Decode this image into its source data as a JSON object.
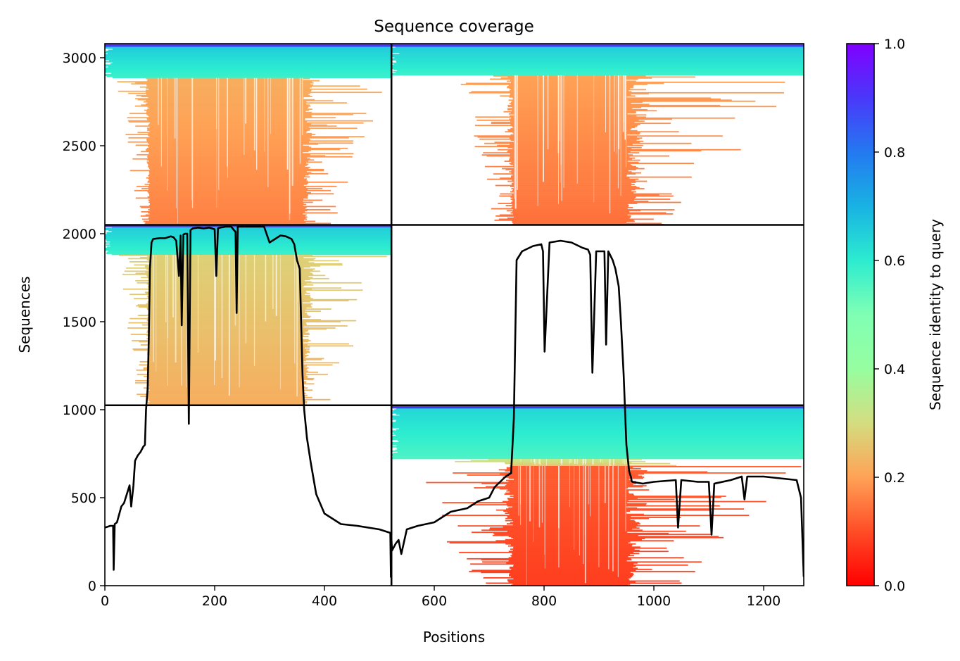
{
  "chart_data": {
    "type": "heatmap",
    "title": "Sequence coverage",
    "xlabel": "Positions",
    "ylabel": "Sequences",
    "xlim": [
      0,
      1273
    ],
    "ylim": [
      0,
      3080
    ],
    "xticks": [
      0,
      200,
      400,
      600,
      800,
      1000,
      1200
    ],
    "yticks": [
      0,
      500,
      1000,
      1500,
      2000,
      2500,
      3000
    ],
    "colorbar": {
      "label": "Sequence identity to query",
      "range": [
        0.0,
        1.0
      ],
      "ticks": [
        "0.0",
        "0.2",
        "0.4",
        "0.6",
        "0.8",
        "1.0"
      ],
      "colormap": "rainbow_r"
    },
    "divisions": {
      "vertical_at_position": 522,
      "horizontal_at_sequences": [
        1025,
        2050
      ]
    },
    "blocks": [
      {
        "x": [
          0,
          522
        ],
        "y": [
          2050,
          3080
        ],
        "cover_x": [
          82,
          360
        ],
        "coverage_tail": [
          20,
          520
        ],
        "bands": [
          {
            "y": [
              2885,
              3070
            ],
            "identity": 0.62
          },
          {
            "y": [
              2050,
              2885
            ],
            "identity": 0.16,
            "top_identity": 0.22
          }
        ]
      },
      {
        "x": [
          522,
          1273
        ],
        "y": [
          2050,
          3080
        ],
        "cover_x": [
          745,
          950
        ],
        "coverage_tail": [
          640,
          1273
        ],
        "bands": [
          {
            "y": [
              2900,
              3070
            ],
            "identity": 0.62
          },
          {
            "y": [
              2050,
              2900
            ],
            "identity": 0.14,
            "top_identity": 0.2
          }
        ]
      },
      {
        "x": [
          0,
          522
        ],
        "y": [
          1025,
          2050
        ],
        "cover_x": [
          82,
          360
        ],
        "coverage_tail": [
          20,
          520
        ],
        "bands": [
          {
            "y": [
              1880,
              2045
            ],
            "identity": 0.62
          },
          {
            "y": [
              1025,
              1880
            ],
            "identity": 0.22,
            "top_identity": 0.28
          }
        ]
      },
      {
        "x": [
          522,
          1273
        ],
        "y": [
          1025,
          2050
        ],
        "cover_x": [
          0,
          0
        ],
        "coverage_tail": [
          0,
          0
        ],
        "bands": []
      },
      {
        "x": [
          522,
          1273
        ],
        "y": [
          0,
          1025
        ],
        "cover_x": [
          745,
          950
        ],
        "coverage_tail": [
          535,
          1273
        ],
        "bands": [
          {
            "y": [
              720,
              1015
            ],
            "identity": 0.6
          },
          {
            "y": [
              680,
              720
            ],
            "identity": 0.3
          },
          {
            "y": [
              0,
              680
            ],
            "identity": 0.08,
            "top_identity": 0.12
          }
        ]
      }
    ],
    "coverage_line": {
      "name": "",
      "x": [
        0,
        10,
        15,
        16,
        18,
        22,
        30,
        35,
        45,
        48,
        52,
        55,
        60,
        65,
        70,
        73,
        75,
        78,
        80,
        82,
        85,
        88,
        100,
        110,
        115,
        120,
        125,
        130,
        135,
        138,
        140,
        143,
        146,
        150,
        153,
        156,
        160,
        170,
        180,
        190,
        200,
        203,
        206,
        210,
        220,
        230,
        238,
        240,
        242,
        250,
        270,
        290,
        300,
        310,
        320,
        330,
        340,
        345,
        350,
        355,
        360,
        363,
        368,
        375,
        385,
        400,
        430,
        460,
        500,
        520,
        521,
        522,
        523,
        530,
        535,
        540,
        550,
        570,
        600,
        610,
        630,
        660,
        680,
        700,
        710,
        720,
        730,
        740,
        745,
        750,
        760,
        780,
        795,
        798,
        801,
        810,
        830,
        850,
        870,
        880,
        884,
        888,
        895,
        905,
        910,
        913,
        917,
        925,
        930,
        936,
        940,
        945,
        950,
        955,
        958,
        960,
        980,
        1000,
        1040,
        1044,
        1050,
        1080,
        1100,
        1105,
        1110,
        1140,
        1160,
        1165,
        1170,
        1200,
        1230,
        1260,
        1268,
        1273
      ],
      "y": [
        330,
        340,
        340,
        90,
        350,
        360,
        450,
        470,
        570,
        450,
        570,
        710,
        740,
        760,
        790,
        800,
        1000,
        1120,
        1400,
        1800,
        1950,
        1970,
        1975,
        1975,
        1980,
        1985,
        1980,
        1960,
        1760,
        1990,
        1480,
        1995,
        2000,
        2000,
        920,
        2020,
        2030,
        2035,
        2030,
        2035,
        2025,
        1760,
        2030,
        2035,
        2040,
        2040,
        2010,
        1550,
        2040,
        2040,
        2040,
        2040,
        1950,
        1970,
        1990,
        1985,
        1970,
        1940,
        1850,
        1800,
        1200,
        1000,
        840,
        700,
        520,
        410,
        350,
        340,
        320,
        300,
        50,
        260,
        200,
        240,
        260,
        180,
        320,
        340,
        360,
        380,
        420,
        440,
        480,
        500,
        560,
        590,
        620,
        640,
        950,
        1850,
        1900,
        1930,
        1940,
        1900,
        1330,
        1950,
        1960,
        1950,
        1920,
        1910,
        1880,
        1210,
        1900,
        1900,
        1900,
        1370,
        1900,
        1850,
        1800,
        1700,
        1500,
        1200,
        800,
        650,
        620,
        590,
        580,
        590,
        600,
        330,
        600,
        590,
        590,
        290,
        580,
        600,
        620,
        490,
        620,
        620,
        610,
        600,
        500,
        50
      ]
    }
  }
}
